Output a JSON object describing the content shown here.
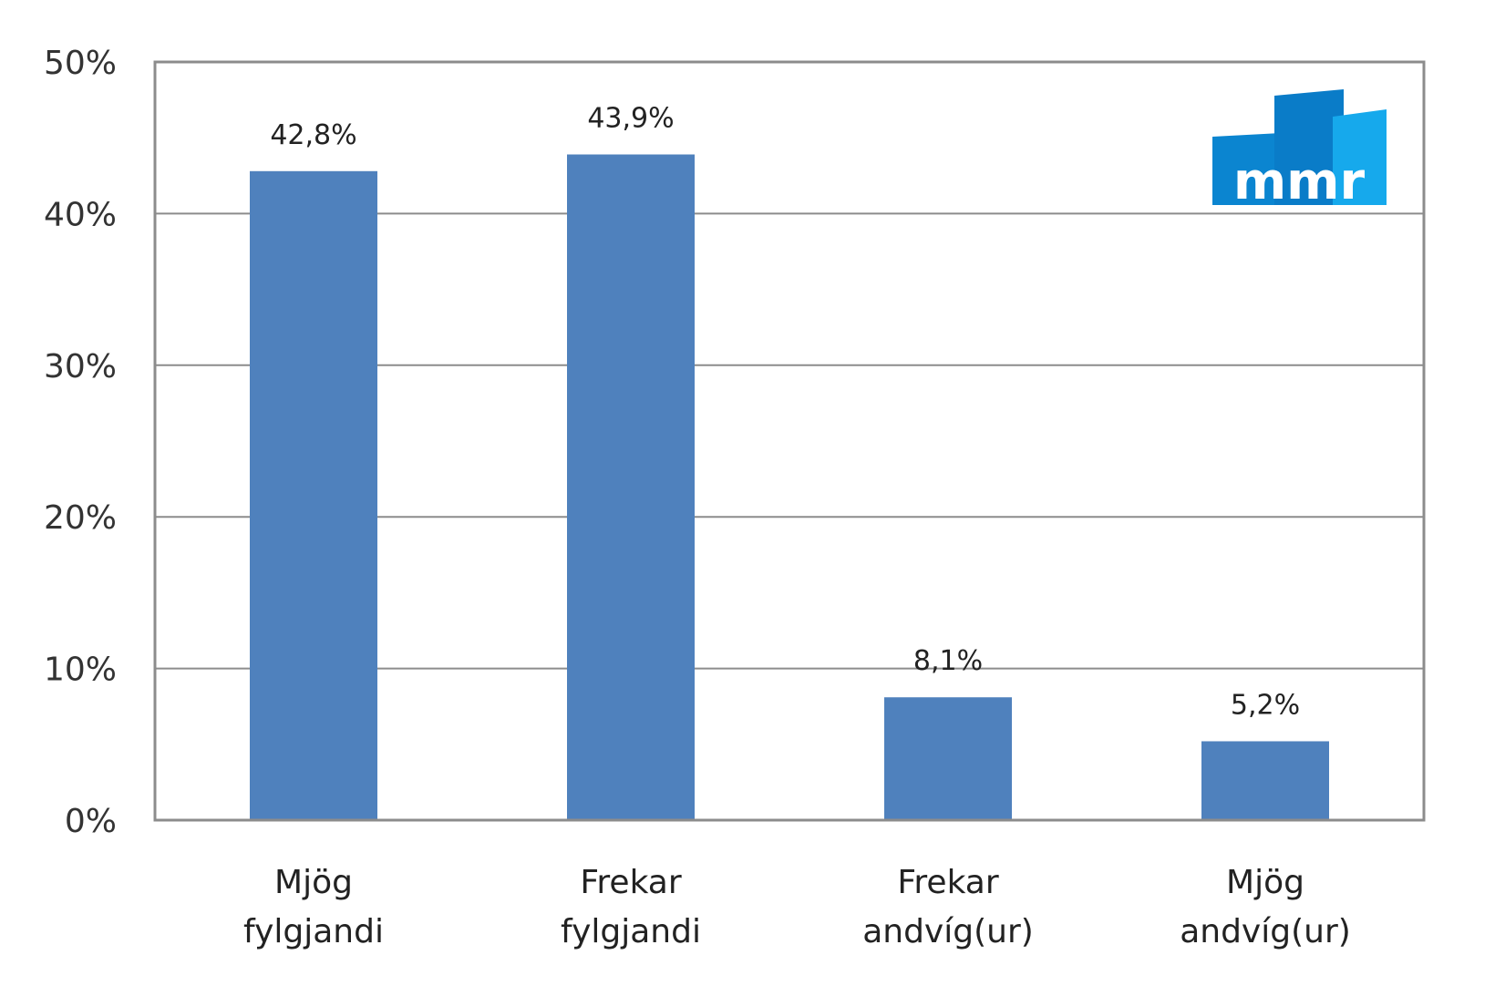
{
  "chart_data": {
    "type": "bar",
    "title": "",
    "xlabel": "",
    "ylabel": "",
    "categories": [
      [
        "Mjög",
        "fylgjandi"
      ],
      [
        "Frekar",
        "fylgjandi"
      ],
      [
        "Frekar",
        "andvíg(ur)"
      ],
      [
        "Mjög",
        "andvíg(ur)"
      ]
    ],
    "values": [
      42.8,
      43.9,
      8.1,
      5.2
    ],
    "data_labels": [
      "42,8%",
      "43,9%",
      "8,1%",
      "5,2%"
    ],
    "ylim": [
      0,
      50
    ],
    "yticks": [
      0,
      10,
      20,
      30,
      40,
      50
    ],
    "ytick_labels": [
      "0%",
      "10%",
      "20%",
      "30%",
      "40%",
      "50%"
    ],
    "grid": true,
    "legend": "none",
    "colors": {
      "bar": "#4f81bd",
      "grid": "#8c8c8c",
      "frame": "#8c8c8c"
    }
  },
  "logo": {
    "text": "mmr",
    "colors": [
      "#0b85d0",
      "#0a7cc8",
      "#16a9ec"
    ]
  }
}
